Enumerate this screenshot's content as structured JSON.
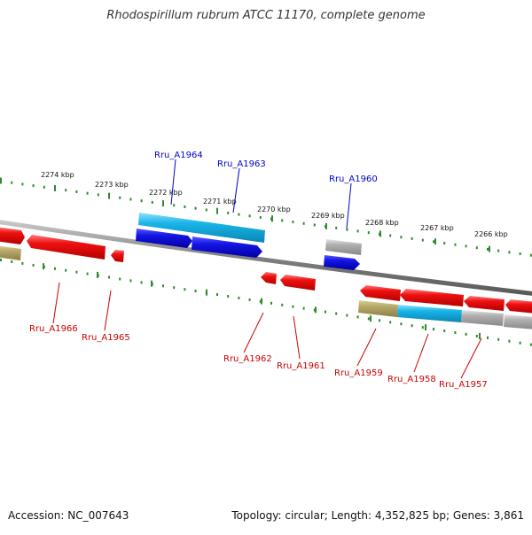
{
  "title": "Rhodospirillum rubrum ATCC 11170, complete genome",
  "footer": {
    "accession": "Accession: NC_007643",
    "stats": "Topology: circular; Length: 4,352,825 bp; Genes: 3,861"
  },
  "colors": {
    "tick": "#2e8b2e",
    "forward_label": "#0000cc",
    "reverse_label": "#cc0000",
    "red_gene": "#ee1111",
    "blue_gene": "#1515e6",
    "cyan_gene": "#19b5e8",
    "grey_gene": "#b0b0b0",
    "olive_gene": "#b8aa6a",
    "backbone": "#808080"
  },
  "scale_labels": [
    "2274 kbp",
    "2273 kbp",
    "2272 kbp",
    "2271 kbp",
    "2270 kbp",
    "2269 kbp",
    "2268 kbp",
    "2267 kbp",
    "2266 kbp"
  ],
  "forward_labels": [
    "Rru_A1964",
    "Rru_A1963",
    "Rru_A1960"
  ],
  "reverse_labels": [
    "Rru_A1966",
    "Rru_A1965",
    "Rru_A1962",
    "Rru_A1961",
    "Rru_A1959",
    "Rru_A1958",
    "Rru_A1957"
  ]
}
